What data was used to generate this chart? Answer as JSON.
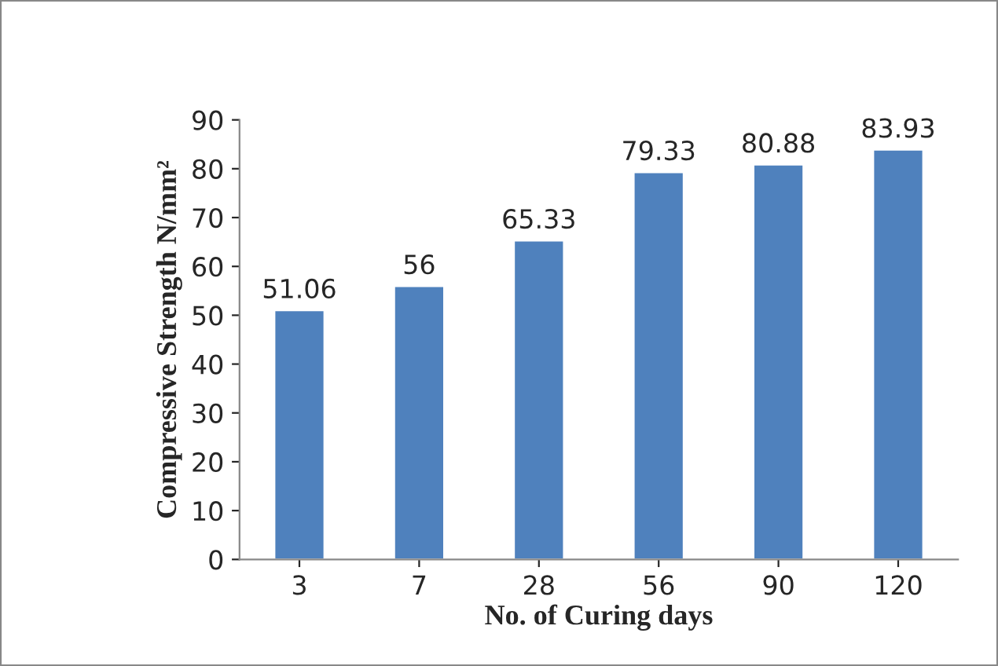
{
  "chart_data": {
    "type": "bar",
    "xlabel": "No. of Curing days",
    "ylabel": "Compressive Strength N/mm²",
    "categories": [
      "3",
      "7",
      "28",
      "56",
      "90",
      "120"
    ],
    "values": [
      51.06,
      56,
      65.33,
      79.33,
      80.88,
      83.93
    ],
    "color": "#4f81bd",
    "ylim": [
      0,
      90
    ],
    "yticks": [
      0,
      10,
      20,
      30,
      40,
      50,
      60,
      70,
      80,
      90
    ],
    "grid": false,
    "data_labels": true
  }
}
